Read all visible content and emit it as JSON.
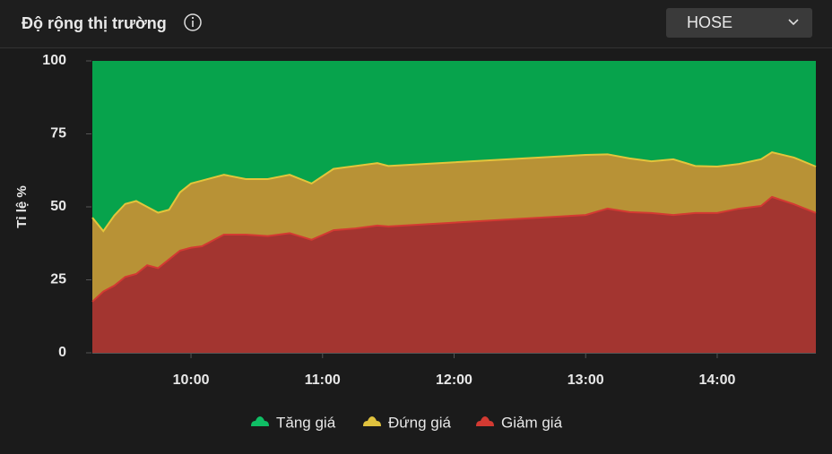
{
  "header": {
    "title": "Độ rộng thị trường",
    "dropdown": "HOSE"
  },
  "chart_data": {
    "type": "stacked-area",
    "ylabel": "Tỉ lệ %",
    "x": [
      555,
      560,
      565,
      570,
      575,
      580,
      585,
      590,
      595,
      600,
      605,
      615,
      625,
      635,
      645,
      655,
      665,
      675,
      685,
      690,
      780,
      790,
      800,
      810,
      820,
      830,
      840,
      850,
      860,
      865,
      875,
      885
    ],
    "xlim": [
      555,
      885
    ],
    "xticks": [
      {
        "value": 600,
        "label": "10:00"
      },
      {
        "value": 660,
        "label": "11:00"
      },
      {
        "value": 720,
        "label": "12:00"
      },
      {
        "value": 780,
        "label": "13:00"
      },
      {
        "value": 840,
        "label": "14:00"
      }
    ],
    "ylim": [
      0,
      100
    ],
    "yticks": [
      0,
      25,
      50,
      75,
      100
    ],
    "series": [
      {
        "name": "Tăng giá",
        "color": "#07a34c",
        "values": [
          53.7,
          58.3,
          53,
          49,
          48,
          50,
          52,
          51,
          45,
          42,
          41,
          39,
          40.5,
          40.5,
          39,
          42,
          37,
          36,
          35,
          36,
          32.2,
          32,
          33.4,
          34.4,
          33.7,
          36,
          36.2,
          35.3,
          33.7,
          31.3,
          33.1,
          36.2
        ]
      },
      {
        "name": "Đứng giá",
        "color": "#b89236",
        "values": [
          28.8,
          20.7,
          24,
          25,
          25,
          20,
          19,
          17,
          20,
          22,
          22.5,
          20.5,
          19,
          19.5,
          20,
          19.3,
          21,
          21.4,
          21.4,
          20.7,
          20.6,
          18.6,
          18.4,
          17.7,
          19.1,
          16.1,
          15.9,
          15.3,
          16,
          15.3,
          16,
          15.9
        ]
      },
      {
        "name": "Giảm giá",
        "color": "#a33530",
        "values": [
          17.5,
          21,
          23,
          26,
          27,
          30,
          29,
          32,
          35,
          36,
          36.5,
          40.5,
          40.5,
          40,
          41,
          38.7,
          42,
          42.6,
          43.6,
          43.3,
          47.2,
          49.4,
          48.2,
          47.9,
          47.2,
          47.9,
          47.9,
          49.4,
          50.3,
          53.4,
          50.9,
          47.9
        ]
      }
    ]
  }
}
